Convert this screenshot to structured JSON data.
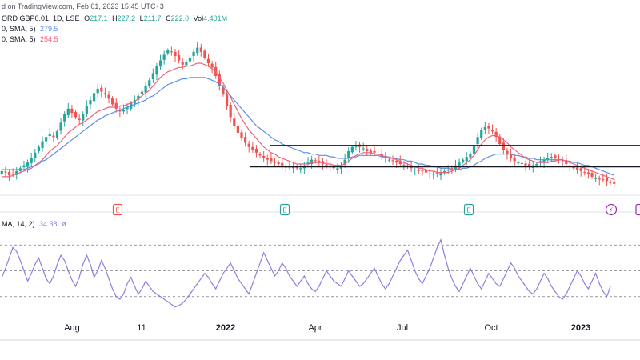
{
  "header": {
    "published": "d on TradingView.com, Feb 01, 2023 15:45 UTC+3"
  },
  "legend": {
    "symbol": "ORD GBP0.01, 1D, LSE",
    "open_label": "O",
    "open": "217.1",
    "high_label": "H",
    "high": "227.2",
    "low_label": "L",
    "low": "211.7",
    "close_label": "C",
    "close": "222.0",
    "vol_label": "Vol",
    "volume": "4.401M",
    "ma_fast_label": "0, SMA, 5)",
    "ma_fast_value": "279.5",
    "ma_slow_label": "0, SMA, 5)",
    "ma_slow_value": "254.5",
    "rsi_label": "MA, 14, 2)",
    "rsi_value": "34.38",
    "rsi_extra": "ø"
  },
  "colors": {
    "up": "#26a69a",
    "down": "#ef5350",
    "ma_fast": "#5b8fe8",
    "ma_slow": "#f0607a",
    "rsi": "#8c7ee0",
    "level_line": "#131722",
    "earnings_green": "#26a69a",
    "earnings_red": "#ef5350",
    "dividend": "#9c27b0"
  },
  "xaxis": {
    "labels": [
      {
        "text": "Aug",
        "x": 90
      },
      {
        "text": "11",
        "x": 177
      },
      {
        "text": "2022",
        "x": 282,
        "bold": true
      },
      {
        "text": "Apr",
        "x": 394
      },
      {
        "text": "Jul",
        "x": 503
      },
      {
        "text": "Oct",
        "x": 614
      },
      {
        "text": "2023",
        "x": 726,
        "bold": true
      }
    ]
  },
  "events": [
    {
      "type": "earnings",
      "label": "E",
      "color": "red",
      "x": 147
    },
    {
      "type": "earnings",
      "label": "E",
      "color": "green",
      "x": 356
    },
    {
      "type": "earnings",
      "label": "E",
      "color": "green",
      "x": 586
    },
    {
      "type": "dividend",
      "label": "⚡",
      "x": 764
    }
  ],
  "chart_data": {
    "type": "candlestick",
    "price_panel": {
      "closes": [
        212,
        211,
        209,
        210,
        212,
        214,
        216,
        218,
        221,
        225,
        229,
        233,
        236,
        238,
        236,
        240,
        246,
        252,
        256,
        253,
        250,
        248,
        252,
        258,
        262,
        267,
        270,
        268,
        266,
        263,
        259,
        256,
        254,
        255,
        257,
        260,
        262,
        265,
        268,
        272,
        276,
        281,
        286,
        290,
        294,
        297,
        296,
        293,
        290,
        287,
        289,
        292,
        296,
        299,
        296,
        292,
        288,
        285,
        279,
        272,
        266,
        258,
        250,
        244,
        239,
        235,
        232,
        229,
        227,
        225,
        223,
        221,
        220,
        219,
        218,
        217,
        216,
        215,
        215,
        214,
        214,
        214,
        216,
        218,
        220,
        219,
        218,
        217,
        216,
        215,
        214,
        214,
        216,
        220,
        226,
        229,
        230,
        229,
        228,
        226,
        225,
        225,
        224,
        222,
        221,
        220,
        219,
        218,
        217,
        216,
        215,
        214,
        213,
        212,
        212,
        211,
        210,
        210,
        210,
        211,
        212,
        213,
        214,
        216,
        218,
        220,
        222,
        224,
        230,
        236,
        241,
        243,
        242,
        240,
        236,
        231,
        227,
        224,
        221,
        219,
        218,
        217,
        216,
        215,
        216,
        217,
        219,
        220,
        221,
        222,
        221,
        220,
        219,
        217,
        215,
        214,
        213,
        212,
        211,
        210,
        208,
        207,
        206,
        206,
        205,
        204,
        203
      ],
      "ma_fast": [
        208,
        208,
        208,
        209,
        210,
        211,
        212,
        213,
        214,
        216,
        218,
        220,
        223,
        226,
        228,
        230,
        233,
        236,
        239,
        241,
        243,
        245,
        246,
        248,
        250,
        252,
        254,
        255,
        256,
        257,
        257,
        257,
        258,
        258,
        259,
        260,
        261,
        263,
        265,
        267,
        269,
        272,
        275,
        278,
        280,
        282,
        283,
        284,
        285,
        285,
        286,
        286,
        287,
        288,
        288,
        287,
        286,
        284,
        282,
        278,
        274,
        269,
        264,
        259,
        254,
        249,
        245,
        241,
        238,
        235,
        232,
        229,
        227,
        225,
        224,
        222,
        221,
        220,
        219,
        218,
        217,
        217,
        217,
        217,
        218,
        218,
        218,
        218,
        217,
        217,
        216,
        216,
        216,
        217,
        219,
        221,
        223,
        224,
        225,
        225,
        225,
        224,
        224,
        223,
        222,
        221,
        221,
        220,
        219,
        218,
        217,
        216,
        215,
        214,
        214,
        213,
        212,
        212,
        211,
        211,
        211,
        211,
        212,
        213,
        214,
        216,
        218,
        220,
        223,
        227,
        231,
        234,
        236,
        237,
        237,
        236,
        234,
        232,
        229,
        227,
        225,
        223,
        221,
        220,
        219,
        218,
        218,
        218,
        218,
        219,
        219,
        220,
        220,
        219,
        218,
        217,
        216,
        215,
        214,
        213,
        212,
        211,
        210,
        209,
        208,
        207,
        206
      ],
      "ma_slow": [
        213,
        213,
        213,
        213,
        213,
        213,
        213,
        214,
        215,
        216,
        217,
        219,
        220,
        222,
        224,
        226,
        228,
        230,
        232,
        234,
        236,
        238,
        240,
        242,
        244,
        246,
        248,
        249,
        251,
        252,
        253,
        254,
        255,
        256,
        257,
        258,
        259,
        260,
        261,
        262,
        264,
        265,
        267,
        269,
        271,
        273,
        274,
        275,
        276,
        277,
        277,
        278,
        278,
        278,
        278,
        278,
        277,
        276,
        275,
        273,
        271,
        268,
        265,
        262,
        259,
        256,
        253,
        250,
        247,
        244,
        242,
        240,
        238,
        236,
        234,
        233,
        231,
        230,
        229,
        228,
        227,
        226,
        225,
        225,
        224,
        224,
        223,
        223,
        223,
        222,
        222,
        221,
        221,
        221,
        221,
        222,
        222,
        223,
        223,
        223,
        223,
        223,
        223,
        222,
        222,
        222,
        221,
        221,
        220,
        220,
        219,
        219,
        218,
        217,
        217,
        216,
        216,
        215,
        215,
        214,
        214,
        214,
        213,
        213,
        213,
        214,
        214,
        215,
        216,
        218,
        219,
        221,
        222,
        223,
        224,
        224,
        224,
        224,
        224,
        223,
        223,
        222,
        222,
        221,
        221,
        220,
        220,
        220,
        220,
        220,
        220,
        220,
        220,
        219,
        219,
        218,
        218,
        217,
        216,
        216,
        215,
        214,
        213,
        212,
        211,
        210,
        209
      ],
      "support": 215,
      "resistance": 230,
      "ymin": 195,
      "ymax": 310
    },
    "rsi_panel": {
      "values": [
        45,
        52,
        60,
        68,
        65,
        58,
        50,
        42,
        48,
        55,
        60,
        52,
        44,
        40,
        46,
        55,
        62,
        58,
        50,
        43,
        38,
        45,
        55,
        62,
        55,
        45,
        50,
        58,
        52,
        44,
        36,
        30,
        28,
        32,
        40,
        45,
        38,
        32,
        36,
        42,
        38,
        34,
        32,
        30,
        28,
        26,
        24,
        22,
        23,
        25,
        28,
        32,
        36,
        40,
        44,
        48,
        45,
        40,
        36,
        42,
        48,
        52,
        56,
        50,
        44,
        40,
        36,
        32,
        40,
        48,
        56,
        64,
        58,
        52,
        46,
        50,
        56,
        52,
        46,
        42,
        38,
        42,
        46,
        40,
        36,
        34,
        38,
        44,
        50,
        46,
        42,
        40,
        38,
        44,
        50,
        46,
        42,
        38,
        40,
        44,
        48,
        52,
        46,
        40,
        36,
        40,
        46,
        52,
        58,
        62,
        66,
        58,
        50,
        44,
        40,
        46,
        52,
        60,
        68,
        74,
        62,
        52,
        44,
        38,
        34,
        40,
        46,
        52,
        46,
        40,
        36,
        42,
        48,
        44,
        40,
        38,
        44,
        50,
        56,
        52,
        46,
        42,
        38,
        34,
        32,
        36,
        42,
        48,
        44,
        38,
        34,
        30,
        28,
        32,
        38,
        44,
        50,
        46,
        40,
        36,
        42,
        48,
        40,
        34,
        30,
        38
      ],
      "levels": [
        70,
        50,
        30
      ],
      "ymin": 15,
      "ymax": 85
    }
  }
}
